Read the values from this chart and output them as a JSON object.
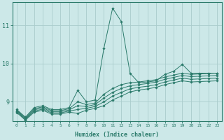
{
  "xlabel": "Humidex (Indice chaleur)",
  "background_color": "#cce8e8",
  "grid_color": "#aacccc",
  "line_color": "#2a7a6a",
  "xlim": [
    -0.5,
    23.5
  ],
  "ylim": [
    8.5,
    11.6
  ],
  "yticks": [
    9,
    10,
    11
  ],
  "xticks": [
    0,
    1,
    2,
    3,
    4,
    5,
    6,
    7,
    8,
    9,
    10,
    11,
    12,
    13,
    14,
    15,
    16,
    17,
    18,
    19,
    20,
    21,
    22,
    23
  ],
  "lines": [
    [
      8.8,
      8.6,
      8.85,
      8.9,
      8.8,
      8.8,
      8.85,
      9.3,
      9.0,
      9.05,
      10.4,
      11.45,
      11.1,
      9.75,
      9.5,
      9.52,
      9.55,
      9.72,
      9.8,
      9.98,
      9.75,
      9.75,
      9.75,
      9.75
    ],
    [
      8.78,
      8.58,
      8.82,
      8.87,
      8.77,
      8.77,
      8.82,
      9.0,
      8.93,
      8.97,
      9.2,
      9.35,
      9.45,
      9.5,
      9.52,
      9.55,
      9.58,
      9.65,
      9.7,
      9.75,
      9.72,
      9.73,
      9.74,
      9.75
    ],
    [
      8.76,
      8.56,
      8.79,
      8.84,
      8.74,
      8.74,
      8.79,
      8.9,
      8.88,
      8.93,
      9.1,
      9.25,
      9.35,
      9.42,
      9.45,
      9.48,
      9.52,
      9.59,
      9.64,
      9.69,
      9.66,
      9.67,
      9.68,
      9.69
    ],
    [
      8.74,
      8.54,
      8.76,
      8.81,
      8.71,
      8.71,
      8.76,
      8.8,
      8.83,
      8.88,
      9.0,
      9.15,
      9.25,
      9.34,
      9.38,
      9.41,
      9.45,
      9.52,
      9.57,
      9.62,
      9.59,
      9.6,
      9.61,
      9.62
    ],
    [
      8.72,
      8.52,
      8.73,
      8.78,
      8.68,
      8.68,
      8.73,
      8.7,
      8.78,
      8.83,
      8.9,
      9.05,
      9.15,
      9.26,
      9.31,
      9.34,
      9.38,
      9.45,
      9.5,
      9.55,
      9.52,
      9.53,
      9.54,
      9.55
    ]
  ]
}
